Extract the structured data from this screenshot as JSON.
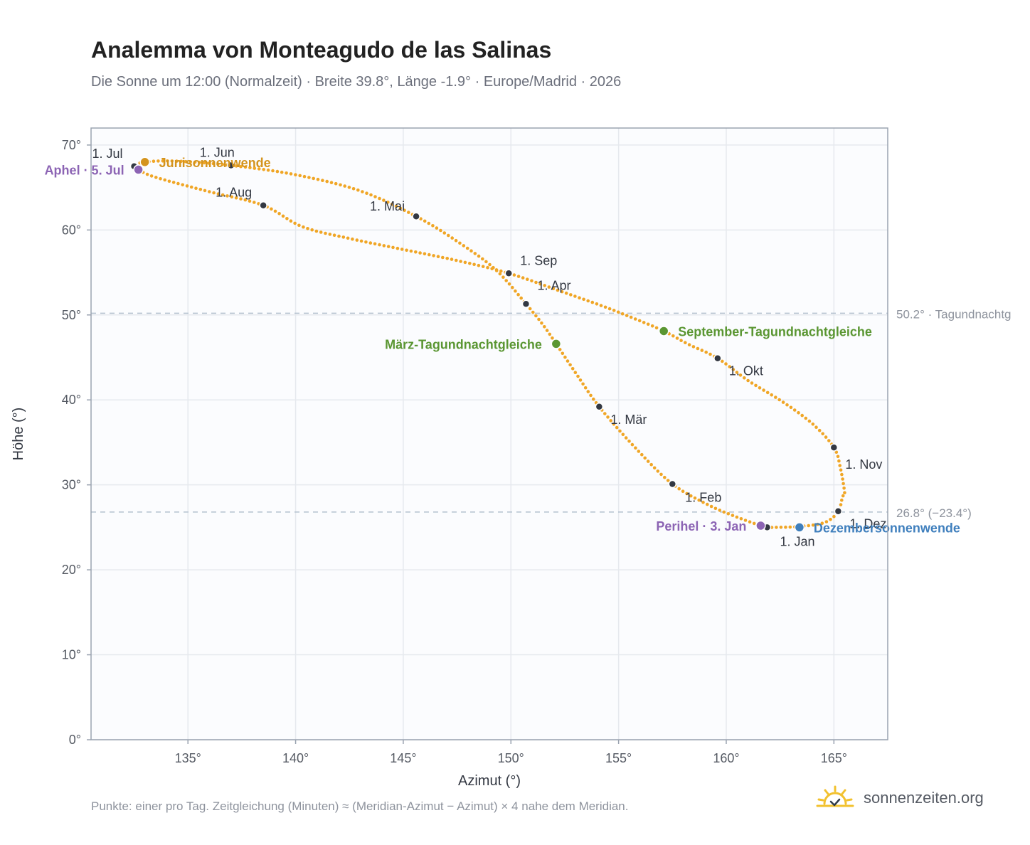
{
  "header": {
    "title": "Analemma von Monteagudo de las Salinas",
    "subtitle": "Die Sonne um 12:00 (Normalzeit) · Breite 39.8°, Länge -1.9° · Europe/Madrid · 2026"
  },
  "footer": {
    "note": "Punkte: einer pro Tag. Zeitgleichung (Minuten) ≈ (Meridian-Azimut − Azimut) × 4 nahe dem Meridian.",
    "brand": "sonnenzeiten.org"
  },
  "colors": {
    "curve": "#f0a626",
    "month_marker": "#333842",
    "solstice_june": "#d4941e",
    "solstice_december": "#3f7fbd",
    "equinox": "#5a9632",
    "apsis": "#8c64b4",
    "reference_line": "#b4c1cf",
    "plot_background": "#fbfcfe",
    "grid": "#e6e9ee",
    "frame": "#9aa3b0"
  },
  "chart_data": {
    "type": "scatter",
    "xlabel": "Azimut (°)",
    "ylabel": "Höhe (°)",
    "xlim": [
      130.5,
      167.5
    ],
    "ylim": [
      0,
      72
    ],
    "xticks": [
      135,
      140,
      145,
      150,
      155,
      160,
      165
    ],
    "yticks": [
      0,
      10,
      20,
      30,
      40,
      50,
      60,
      70
    ],
    "tick_suffix": "°",
    "grid": true,
    "series": [
      {
        "role": "daily-sun-position",
        "points": [
          [
            161.9,
            25.0
          ],
          [
            163.4,
            25.1
          ],
          [
            164.6,
            25.6
          ],
          [
            165.2,
            26.9
          ],
          [
            165.4,
            28.6
          ],
          [
            165.5,
            29.0
          ],
          [
            165.3,
            32.0
          ],
          [
            165.0,
            34.4
          ],
          [
            164.0,
            37.2
          ],
          [
            162.6,
            39.8
          ],
          [
            161.0,
            42.3
          ],
          [
            159.6,
            44.9
          ],
          [
            158.2,
            46.6
          ],
          [
            157.1,
            48.1
          ],
          [
            155.8,
            49.5
          ],
          [
            154.3,
            51.0
          ],
          [
            152.3,
            52.8
          ],
          [
            149.9,
            54.9
          ],
          [
            147.5,
            56.4
          ],
          [
            145.0,
            57.7
          ],
          [
            142.5,
            59.0
          ],
          [
            140.3,
            60.4
          ],
          [
            138.5,
            62.9
          ],
          [
            136.0,
            64.5
          ],
          [
            133.5,
            66.2
          ],
          [
            132.7,
            67.1
          ],
          [
            132.5,
            67.5
          ],
          [
            133.0,
            68.0
          ],
          [
            134.5,
            68.1
          ],
          [
            137.0,
            67.6
          ],
          [
            140.0,
            66.5
          ],
          [
            143.0,
            64.6
          ],
          [
            145.6,
            61.6
          ],
          [
            147.6,
            58.5
          ],
          [
            149.3,
            55.3
          ],
          [
            150.7,
            51.3
          ],
          [
            151.5,
            48.8
          ],
          [
            152.1,
            46.6
          ],
          [
            153.0,
            43.2
          ],
          [
            154.1,
            39.2
          ],
          [
            155.8,
            34.3
          ],
          [
            157.5,
            30.1
          ],
          [
            159.2,
            27.6
          ],
          [
            160.5,
            26.2
          ],
          [
            161.6,
            25.2
          ],
          [
            161.9,
            25.0
          ]
        ]
      }
    ],
    "month_markers": [
      {
        "label": "1. Jan",
        "x": 161.9,
        "y": 25.0
      },
      {
        "label": "1. Feb",
        "x": 157.5,
        "y": 30.1
      },
      {
        "label": "1. Mär",
        "x": 154.1,
        "y": 39.2
      },
      {
        "label": "1. Apr",
        "x": 150.7,
        "y": 51.3
      },
      {
        "label": "1. Mai",
        "x": 145.6,
        "y": 61.6
      },
      {
        "label": "1. Jun",
        "x": 137.0,
        "y": 67.6
      },
      {
        "label": "1. Jul",
        "x": 132.5,
        "y": 67.5
      },
      {
        "label": "1. Aug",
        "x": 138.5,
        "y": 62.9
      },
      {
        "label": "1. Sep",
        "x": 149.9,
        "y": 54.9
      },
      {
        "label": "1. Okt",
        "x": 159.6,
        "y": 44.9
      },
      {
        "label": "1. Nov",
        "x": 165.0,
        "y": 34.4
      },
      {
        "label": "1. Dez",
        "x": 165.2,
        "y": 26.9
      }
    ],
    "events": [
      {
        "label": "Junisonnenwende",
        "x": 133.0,
        "y": 68.0,
        "kind": "solstice_june",
        "align": "right"
      },
      {
        "label": "Dezembersonnenwende",
        "x": 163.4,
        "y": 25.0,
        "kind": "solstice_december",
        "align": "right"
      },
      {
        "label": "März-Tagundnachtgleiche",
        "x": 152.1,
        "y": 46.6,
        "kind": "equinox",
        "align": "left"
      },
      {
        "label": "September-Tagundnachtgleiche",
        "x": 157.1,
        "y": 48.1,
        "kind": "equinox",
        "align": "right"
      },
      {
        "label": "Aphel · 5. Jul",
        "x": 132.7,
        "y": 67.1,
        "kind": "apsis",
        "align": "left"
      },
      {
        "label": "Perihel · 3. Jan",
        "x": 161.6,
        "y": 25.2,
        "kind": "apsis",
        "align": "left"
      }
    ],
    "reference_lines": [
      {
        "y": 50.2,
        "label": "50.2° · Tagundnachtg"
      },
      {
        "y": 26.8,
        "label": "26.8° (−23.4°)"
      }
    ]
  }
}
